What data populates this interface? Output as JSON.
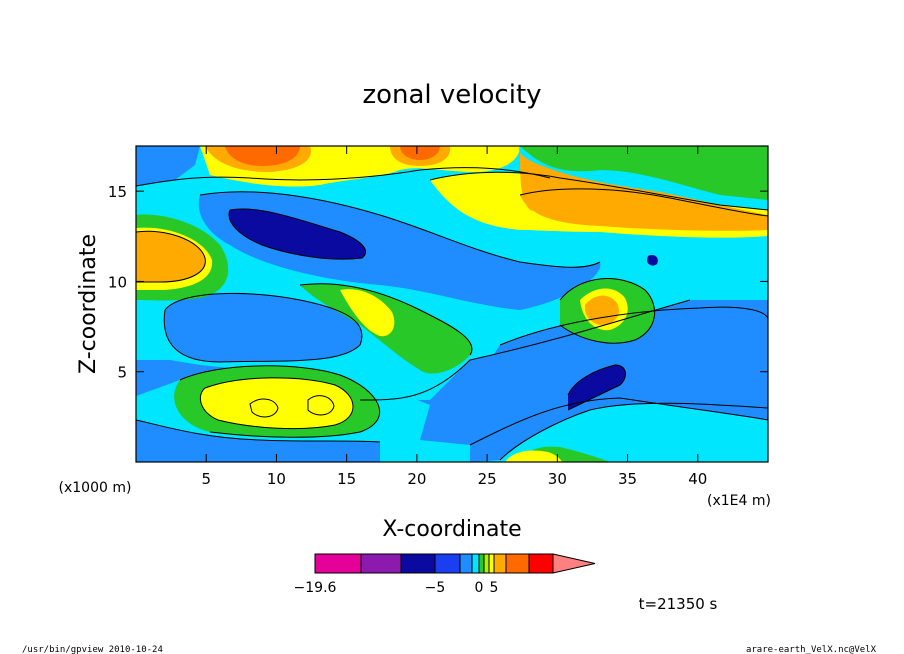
{
  "chart_data": {
    "type": "heatmap",
    "title": "zonal velocity",
    "xlabel": "X-coordinate",
    "ylabel": "Z-coordinate",
    "x_unit": "(x1E4 m)",
    "y_unit": "(x1000 m)",
    "xlim": [
      0,
      45
    ],
    "ylim": [
      0,
      17.5
    ],
    "xticks": [
      "5",
      "10",
      "15",
      "20",
      "25",
      "30",
      "35",
      "40"
    ],
    "yticks": [
      "5",
      "10",
      "15"
    ],
    "xtick_values": [
      5,
      10,
      15,
      20,
      25,
      30,
      35,
      40
    ],
    "ytick_values": [
      5,
      10,
      15
    ],
    "colorbar": {
      "levels": [
        -19.6,
        -15,
        -10,
        -5,
        -2.5,
        -1,
        0,
        1,
        2.5,
        5,
        10,
        15
      ],
      "labels": [
        "−19.6",
        "−5",
        "0",
        "5"
      ],
      "label_values": [
        -19.6,
        -5,
        0,
        5
      ],
      "colors": [
        "#e6009a",
        "#8c1aaf",
        "#0a0aa0",
        "#1a3ef0",
        "#1f8cff",
        "#00e6ff",
        "#28c828",
        "#aaf000",
        "#ffff00",
        "#ffaa00",
        "#ff6a00",
        "#ff0000",
        "#ff8080"
      ]
    },
    "regions": [
      {
        "name": "orange-core-top-left",
        "center": [
          9,
          17
        ],
        "value": 10
      },
      {
        "name": "orange-band-right",
        "center": [
          37,
          14
        ],
        "value": 7
      },
      {
        "name": "orange-left-edge",
        "center": [
          2,
          11.5
        ],
        "value": 8
      },
      {
        "name": "dark-blue-upper",
        "center": [
          11,
          13
        ],
        "value": -6
      },
      {
        "name": "dark-blue-lower-right",
        "center": [
          32,
          4.5
        ],
        "value": -6
      },
      {
        "name": "yellow-lower-left",
        "center": [
          10,
          3.5
        ],
        "value": 4
      },
      {
        "name": "blue-middle-left",
        "center": [
          8,
          7
        ],
        "value": -3
      }
    ]
  },
  "footer": {
    "time": "t=21350 s",
    "left_note": "/usr/bin/gpview  2010-10-24",
    "right_note": "arare-earth_VelX.nc@VelX"
  }
}
